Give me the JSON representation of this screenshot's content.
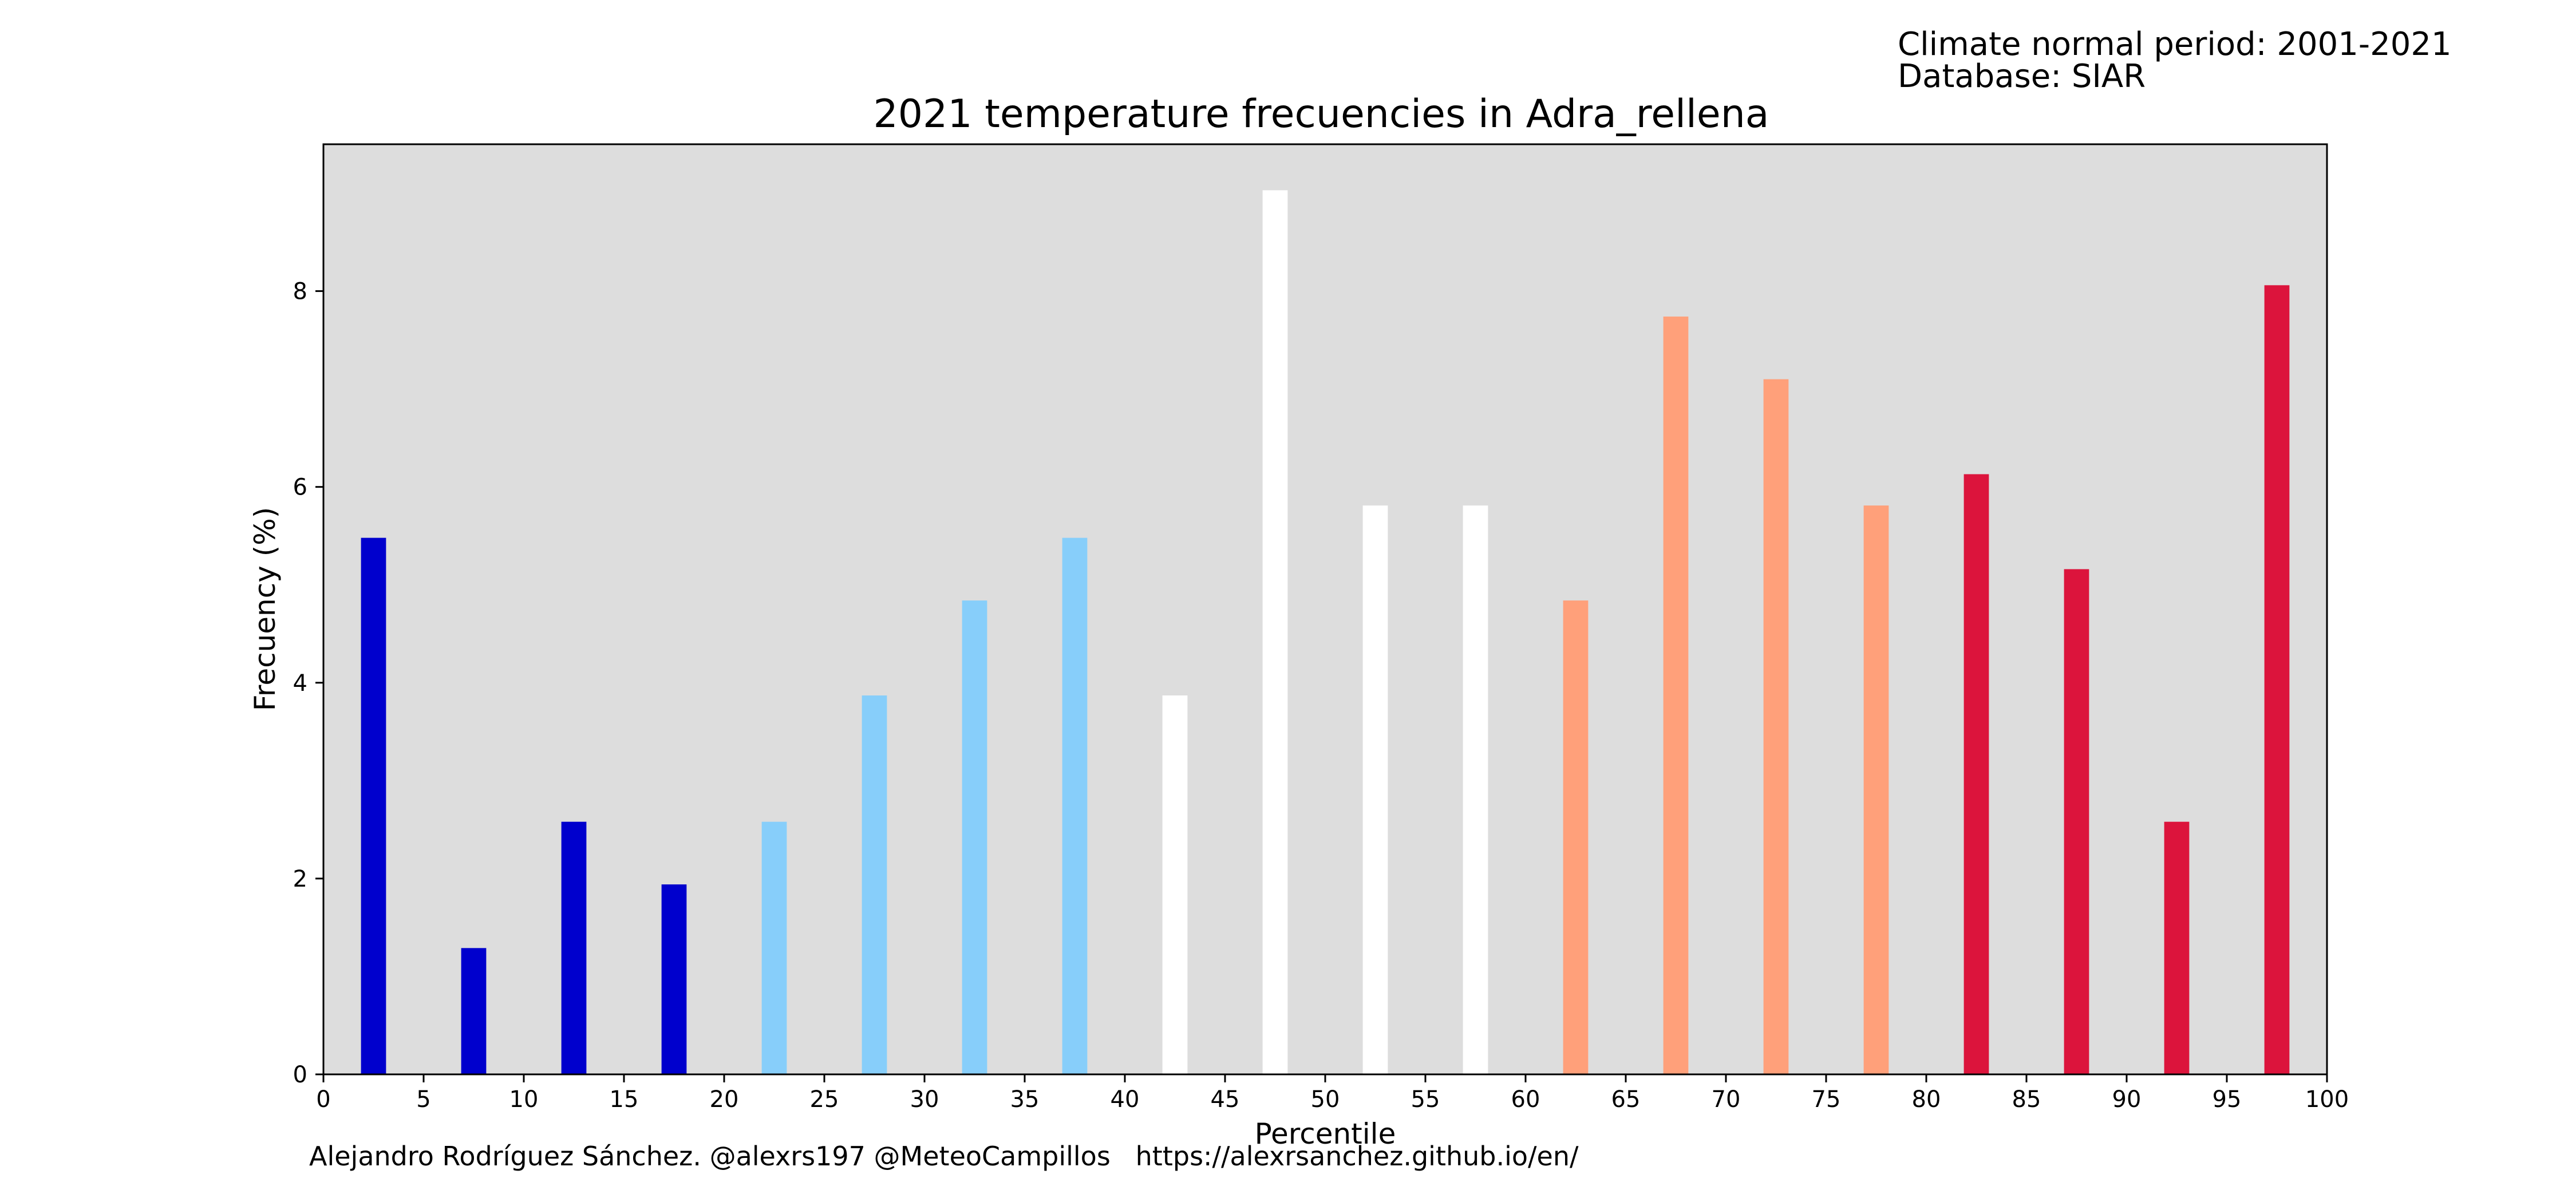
{
  "header": {
    "period_line": "Climate normal period: 2001-2021",
    "database_line": "Database: SIAR"
  },
  "footer": {
    "credits": "Alejandro Rodríguez Sánchez. @alexrs197 @MeteoCampillos   https://alexrsanchez.github.io/en/"
  },
  "chart_data": {
    "type": "bar",
    "title": "2021 temperature frecuencies in Adra_rellena",
    "xlabel": "Percentile",
    "ylabel": "Frecuency (%)",
    "xlim": [
      0,
      100
    ],
    "ylim": [
      0,
      9.5
    ],
    "xticks": [
      0,
      5,
      10,
      15,
      20,
      25,
      30,
      35,
      40,
      45,
      50,
      55,
      60,
      65,
      70,
      75,
      80,
      85,
      90,
      95,
      100
    ],
    "yticks": [
      0,
      2,
      4,
      6,
      8
    ],
    "grid": false,
    "plot_background": "#dddddd",
    "bar_width": 1.25,
    "categories": [
      2.5,
      7.5,
      12.5,
      17.5,
      22.5,
      27.5,
      32.5,
      37.5,
      42.5,
      47.5,
      52.5,
      57.5,
      62.5,
      67.5,
      72.5,
      77.5,
      82.5,
      87.5,
      92.5,
      97.5
    ],
    "values": [
      5.48,
      1.29,
      2.58,
      1.94,
      2.58,
      3.87,
      4.84,
      5.48,
      3.87,
      9.03,
      5.81,
      5.81,
      4.84,
      7.74,
      7.1,
      5.81,
      6.13,
      5.16,
      2.58,
      8.06
    ],
    "colors": [
      "#0000cd",
      "#0000cd",
      "#0000cd",
      "#0000cd",
      "#87cefa",
      "#87cefa",
      "#87cefa",
      "#87cefa",
      "#ffffff",
      "#ffffff",
      "#ffffff",
      "#ffffff",
      "#ffa07a",
      "#ffa07a",
      "#ffa07a",
      "#ffa07a",
      "#dc143c",
      "#dc143c",
      "#dc143c",
      "#dc143c"
    ]
  }
}
